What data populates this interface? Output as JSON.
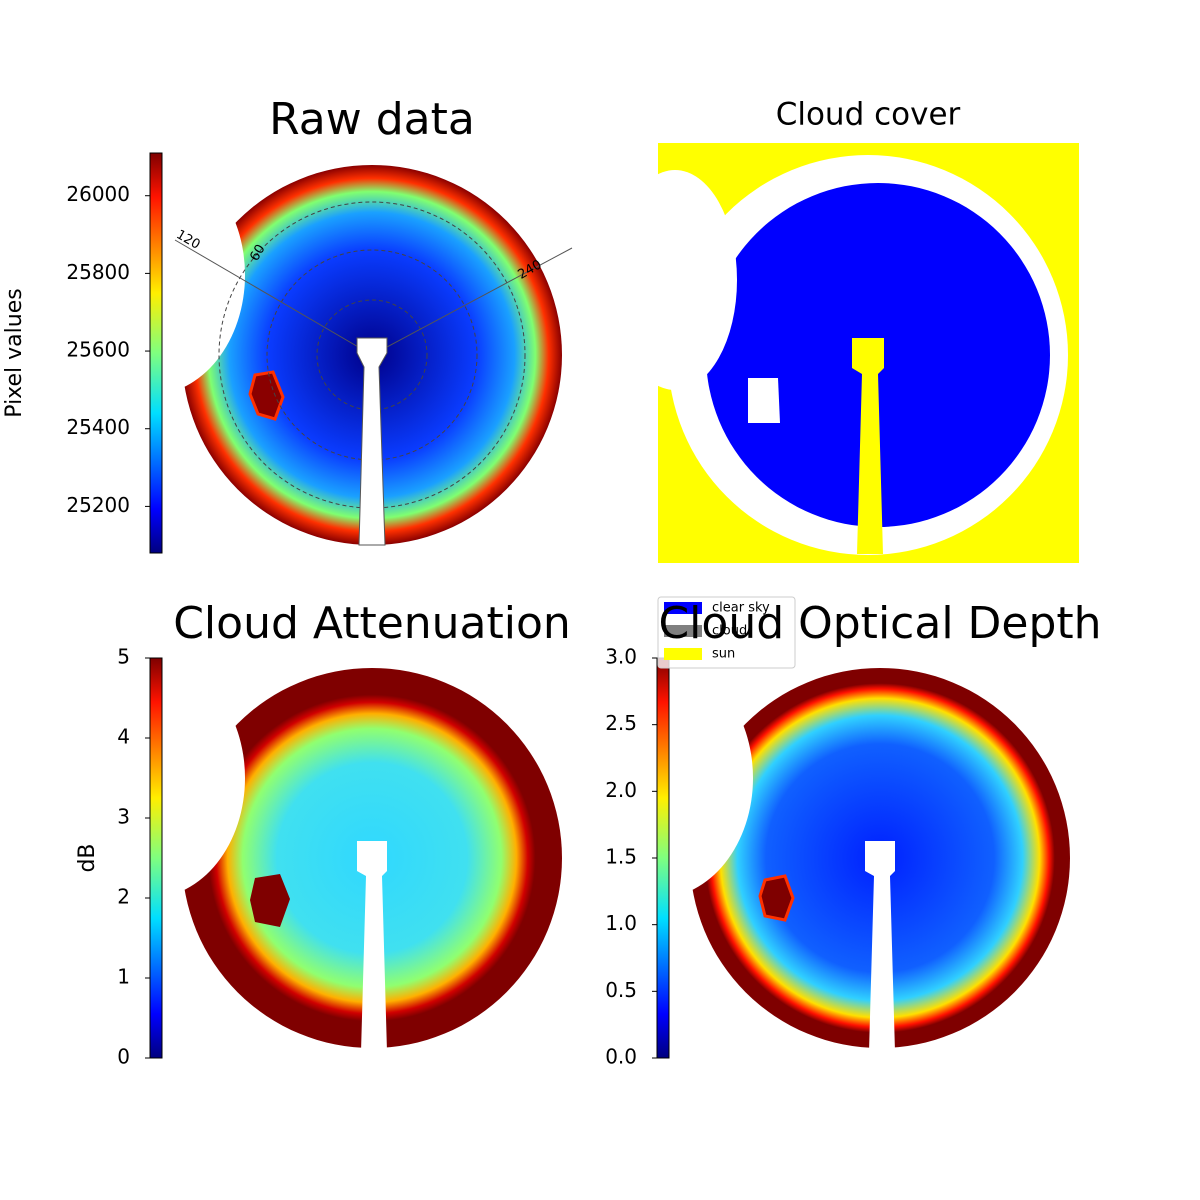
{
  "chart_data": [
    {
      "type": "image",
      "title": "Raw data",
      "colorbar_label": "Pixel values",
      "clim": [
        25080,
        26110
      ],
      "cticks": [
        25200,
        25400,
        25600,
        25800,
        26000
      ],
      "annotations": [
        "120",
        "60",
        "240"
      ]
    },
    {
      "type": "image",
      "title": "Cloud cover",
      "legend": [
        {
          "name": "clear sky",
          "color": "#0000ff"
        },
        {
          "name": "cloud",
          "color": "#808080"
        },
        {
          "name": "sun",
          "color": "#ffff00"
        }
      ]
    },
    {
      "type": "image",
      "title": "Cloud Attenuation",
      "colorbar_label": "dB",
      "clim": [
        0,
        5
      ],
      "cticks": [
        0,
        1,
        2,
        3,
        4,
        5
      ]
    },
    {
      "type": "image",
      "title": "Cloud Optical Depth",
      "clim": [
        0,
        3
      ],
      "cticks": [
        {
          "value": 0,
          "label": "0.0"
        },
        {
          "value": 0.5,
          "label": "0.5"
        },
        {
          "value": 1,
          "label": "1.0"
        },
        {
          "value": 1.5,
          "label": "1.5"
        },
        {
          "value": 2,
          "label": "2.0"
        },
        {
          "value": 2.5,
          "label": "2.5"
        },
        {
          "value": 3,
          "label": "3.0"
        }
      ]
    }
  ]
}
